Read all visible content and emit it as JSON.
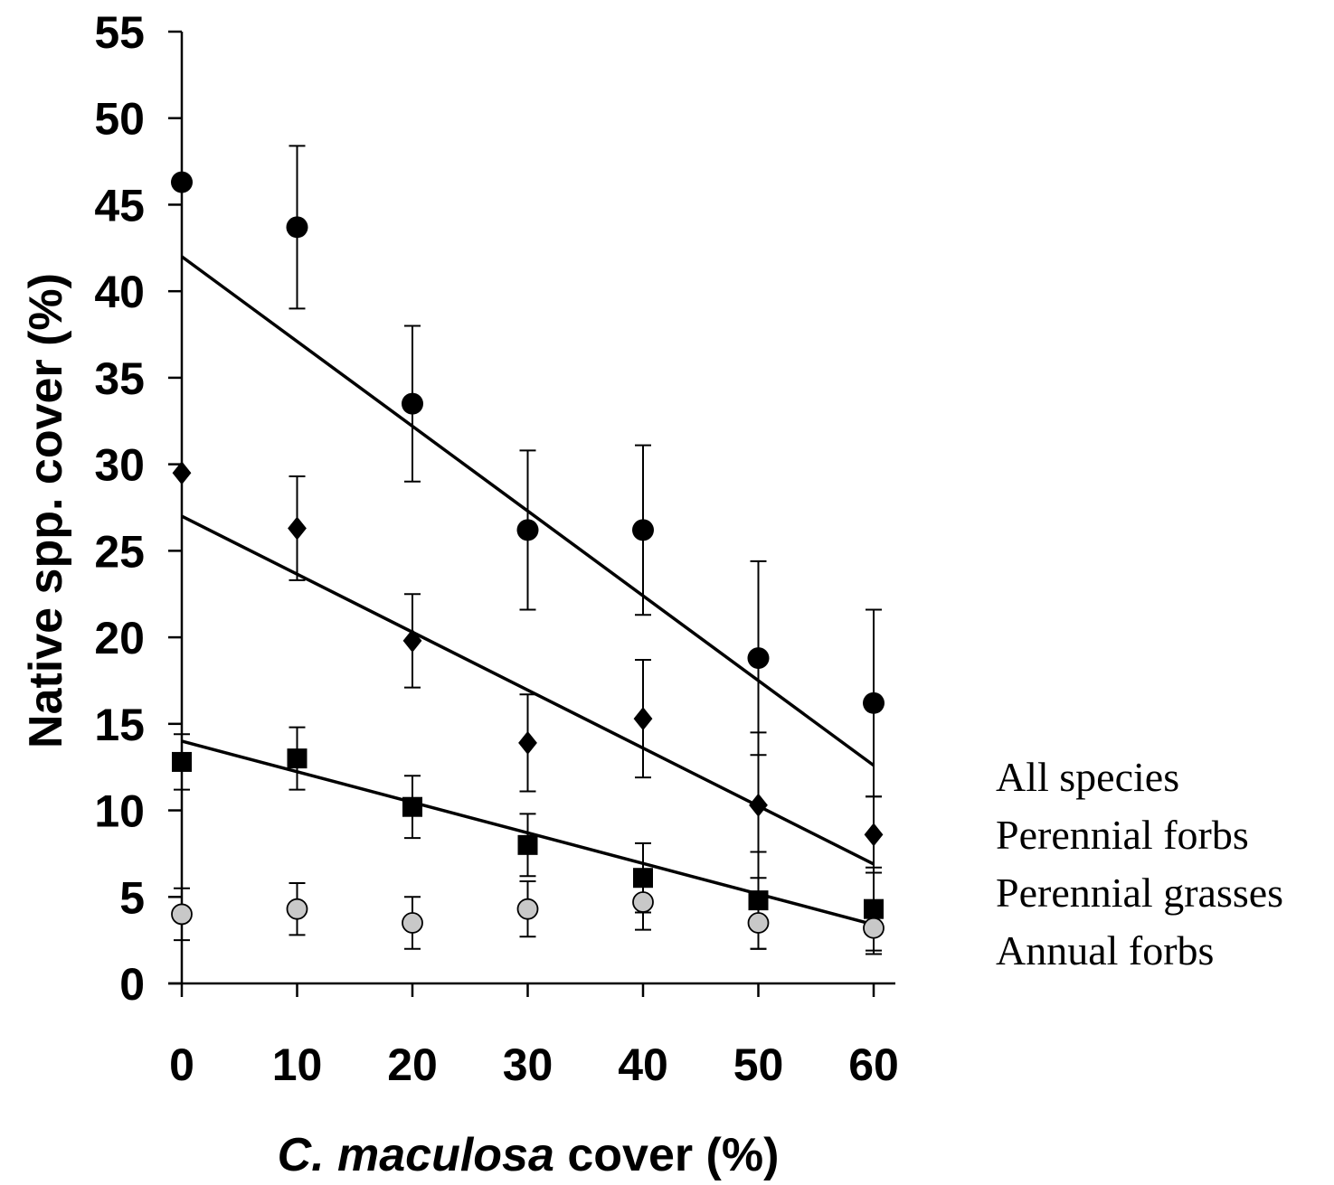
{
  "chart_data": {
    "type": "scatter",
    "xlabel_italic": "C. maculosa",
    "xlabel_rest": " cover (%)",
    "ylabel": "Native spp. cover (%)",
    "xlim": [
      0,
      60
    ],
    "ylim": [
      0,
      55
    ],
    "x_ticks": [
      0,
      10,
      20,
      30,
      40,
      50,
      60
    ],
    "y_ticks": [
      0,
      5,
      10,
      15,
      20,
      25,
      30,
      35,
      40,
      45,
      50,
      55
    ],
    "x_tick_labels": [
      "0",
      "10",
      "20",
      "30",
      "40",
      "50",
      "60"
    ],
    "y_tick_labels": [
      "0",
      "5",
      "10",
      "15",
      "20",
      "25",
      "30",
      "35",
      "40",
      "45",
      "50",
      "55"
    ],
    "grid": false,
    "legend_position": "right",
    "x": [
      0,
      10,
      20,
      30,
      40,
      50,
      60
    ],
    "series": [
      {
        "name": "All species",
        "marker": "circle",
        "color": "#000000",
        "values": [
          46.3,
          43.7,
          33.5,
          26.2,
          26.2,
          18.8,
          16.2
        ],
        "error": [
          null,
          4.7,
          4.5,
          4.6,
          4.9,
          5.6,
          5.4
        ],
        "trend": [
          42.0,
          12.6
        ]
      },
      {
        "name": "Perennial forbs",
        "marker": "diamond",
        "color": "#000000",
        "values": [
          29.5,
          26.3,
          19.8,
          13.9,
          15.3,
          10.3,
          8.6
        ],
        "error": [
          null,
          3.0,
          2.7,
          2.8,
          3.4,
          4.2,
          2.2
        ],
        "trend": [
          27.0,
          6.9
        ]
      },
      {
        "name": "Perennial grasses",
        "marker": "square",
        "color": "#000000",
        "values": [
          12.8,
          13.0,
          10.2,
          8.0,
          6.1,
          4.8,
          4.3
        ],
        "error": [
          1.6,
          1.8,
          1.8,
          1.8,
          2.0,
          2.8,
          2.4
        ],
        "trend": [
          14.0,
          3.4
        ]
      },
      {
        "name": "Annual forbs",
        "marker": "circle-open",
        "color": "#c8c8c8",
        "values": [
          4.0,
          4.3,
          3.5,
          4.3,
          4.7,
          3.5,
          3.2
        ],
        "error": [
          1.5,
          1.5,
          1.5,
          1.6,
          1.6,
          1.5,
          1.5
        ],
        "trend": null
      }
    ]
  }
}
